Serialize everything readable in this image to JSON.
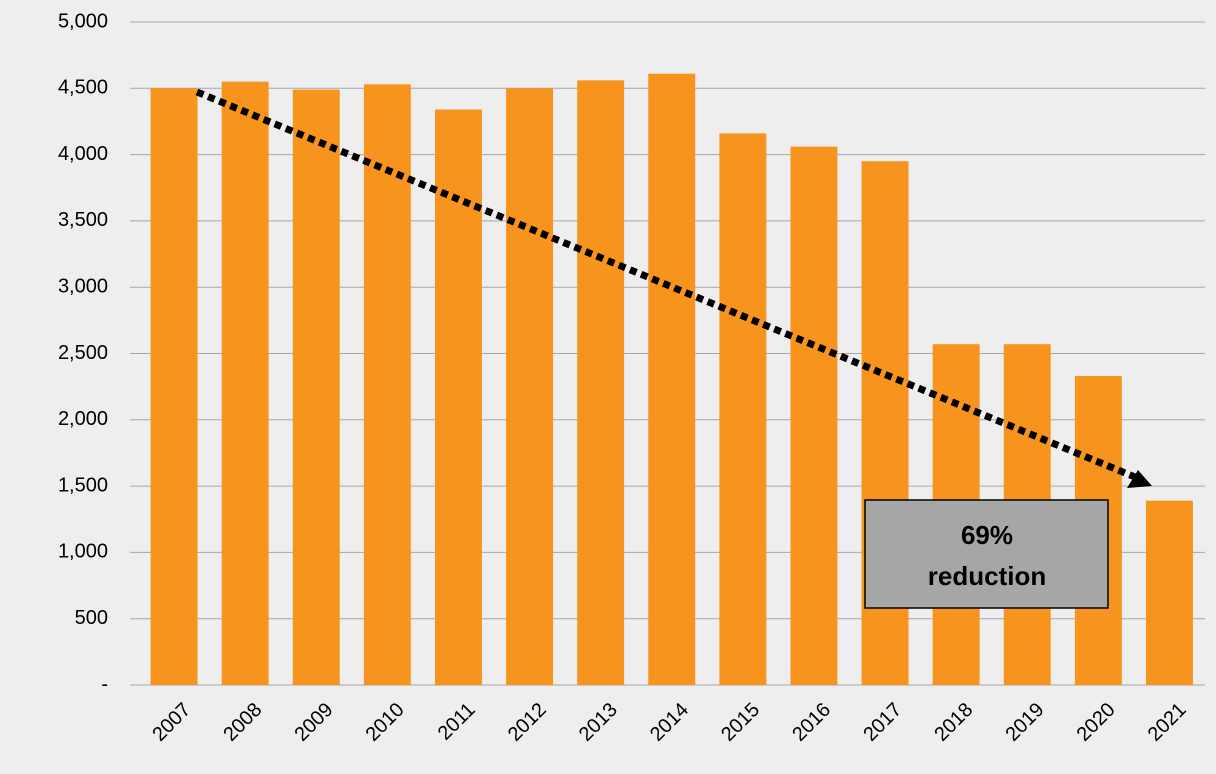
{
  "chart_data": {
    "type": "bar",
    "categories": [
      "2007",
      "2008",
      "2009",
      "2010",
      "2011",
      "2012",
      "2013",
      "2014",
      "2015",
      "2016",
      "2017",
      "2018",
      "2019",
      "2020",
      "2021"
    ],
    "values": [
      4500,
      4550,
      4490,
      4530,
      4340,
      4500,
      4560,
      4610,
      4160,
      4060,
      3950,
      2570,
      2570,
      2330,
      1390
    ],
    "color": "#f7941d",
    "ylim": [
      0,
      5000
    ],
    "yticks": [
      {
        "value": 0,
        "label": "-"
      },
      500,
      {
        "value": 1000,
        "label": "1,000"
      },
      {
        "value": 1500,
        "label": "1,500"
      },
      {
        "value": 2000,
        "label": "2,000"
      },
      {
        "value": 2500,
        "label": "2,500"
      },
      {
        "value": 3000,
        "label": "3,000"
      },
      {
        "value": 3500,
        "label": "3,500"
      },
      {
        "value": 4000,
        "label": "4,000"
      },
      {
        "value": 4500,
        "label": "4,500"
      },
      {
        "value": 5000,
        "label": "5,000"
      }
    ],
    "grid": true,
    "annotation": [
      "69%",
      "reduction"
    ]
  }
}
